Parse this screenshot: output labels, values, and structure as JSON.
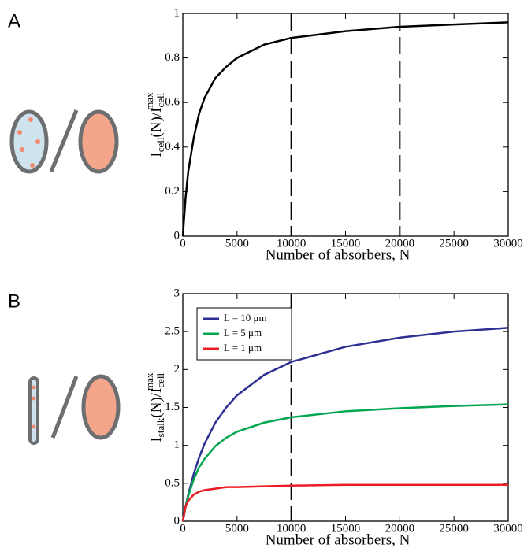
{
  "chart_data": [
    {
      "type": "line",
      "panel": "A",
      "xlabel": "Number of absorbers, N",
      "ylabel": [
        "I",
        "cell",
        "(N)/I",
        "cell",
        "max"
      ],
      "x": [
        0,
        250,
        500,
        1000,
        1500,
        2000,
        3000,
        4000,
        5000,
        7500,
        10000,
        15000,
        20000,
        25000,
        30000
      ],
      "values": [
        0,
        0.17,
        0.29,
        0.44,
        0.55,
        0.62,
        0.71,
        0.76,
        0.8,
        0.86,
        0.89,
        0.92,
        0.94,
        0.95,
        0.96
      ],
      "color": "#000000",
      "vlines": [
        10000,
        20000
      ],
      "xlim": [
        0,
        30000
      ],
      "xticks": [
        0,
        5000,
        10000,
        15000,
        20000,
        25000,
        30000
      ],
      "ylim": [
        0,
        1
      ],
      "yticks": [
        0,
        0.2,
        0.4,
        0.6,
        0.8,
        1
      ]
    },
    {
      "type": "line",
      "panel": "B",
      "xlabel": "Number of absorbers, N",
      "ylabel": [
        "I",
        "stalk",
        "(N)/I",
        "cell",
        "max"
      ],
      "x": [
        0,
        250,
        500,
        1000,
        1500,
        2000,
        3000,
        4000,
        5000,
        7500,
        10000,
        15000,
        20000,
        25000,
        30000
      ],
      "series": [
        {
          "name": "L = 10 μm",
          "color": "#2e3192",
          "values": [
            0,
            0.19,
            0.35,
            0.62,
            0.84,
            1.02,
            1.3,
            1.5,
            1.66,
            1.93,
            2.1,
            2.3,
            2.42,
            2.5,
            2.55
          ]
        },
        {
          "name": "L = 5 μm",
          "color": "#00a650",
          "values": [
            0,
            0.18,
            0.33,
            0.55,
            0.71,
            0.82,
            0.99,
            1.1,
            1.18,
            1.3,
            1.37,
            1.45,
            1.49,
            1.52,
            1.54
          ]
        },
        {
          "name": "L = 1 μm",
          "color": "#ed1c24",
          "values": [
            0,
            0.19,
            0.27,
            0.35,
            0.39,
            0.41,
            0.43,
            0.45,
            0.45,
            0.46,
            0.47,
            0.48,
            0.48,
            0.48,
            0.48
          ]
        }
      ],
      "vlines": [
        10000
      ],
      "legend": "upper left",
      "xlim": [
        0,
        30000
      ],
      "xticks": [
        0,
        5000,
        10000,
        15000,
        20000,
        25000,
        30000
      ],
      "ylim": [
        0,
        3
      ],
      "yticks": [
        0,
        0.5,
        1,
        1.5,
        2,
        2.5,
        3
      ]
    }
  ]
}
